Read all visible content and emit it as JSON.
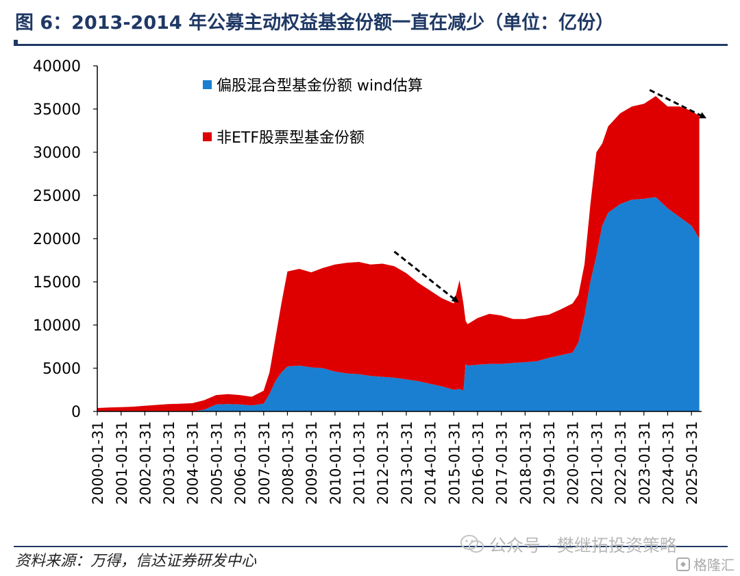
{
  "title": "图 6：2013-2014 年公募主动权益基金份额一直在减少（单位：亿份）",
  "source": "资料来源：万得，信达证券研发中心",
  "watermark": "公众号 · 樊继拓投资策略",
  "corner_badge": "格隆汇",
  "colors": {
    "title": "#1f3864",
    "blue": "#1a7fd0",
    "red": "#de0000",
    "axis": "#000000"
  },
  "chart_data": {
    "type": "area",
    "stacked": true,
    "x": [
      "2000-01-31",
      "2000-07-31",
      "2001-01-31",
      "2001-07-31",
      "2002-01-31",
      "2002-07-31",
      "2003-01-31",
      "2003-07-31",
      "2004-01-31",
      "2004-07-31",
      "2005-01-31",
      "2005-07-31",
      "2006-01-31",
      "2006-07-31",
      "2007-01-31",
      "2007-04-30",
      "2007-07-31",
      "2007-10-31",
      "2008-01-31",
      "2008-07-31",
      "2009-01-31",
      "2009-07-31",
      "2010-01-31",
      "2010-07-31",
      "2011-01-31",
      "2011-07-31",
      "2012-01-31",
      "2012-07-31",
      "2013-01-31",
      "2013-07-31",
      "2014-01-31",
      "2014-07-31",
      "2015-01-31",
      "2015-04-30",
      "2015-06-30",
      "2015-07-31",
      "2015-08-31",
      "2016-01-31",
      "2016-07-31",
      "2017-01-31",
      "2017-07-31",
      "2018-01-31",
      "2018-07-31",
      "2019-01-31",
      "2019-07-31",
      "2020-01-31",
      "2020-04-30",
      "2020-07-31",
      "2020-10-31",
      "2021-01-31",
      "2021-04-30",
      "2021-07-31",
      "2022-01-31",
      "2022-07-31",
      "2023-01-31",
      "2023-07-31",
      "2024-01-31",
      "2024-07-31",
      "2025-01-31",
      "2025-05-31"
    ],
    "series": [
      {
        "name": "偏股混合型基金份额 wind估算",
        "color": "#1a7fd0",
        "values": [
          0,
          0,
          0,
          0,
          0,
          0,
          0,
          0,
          0,
          200,
          800,
          850,
          800,
          700,
          900,
          2000,
          3500,
          4500,
          5200,
          5300,
          5100,
          5000,
          4600,
          4400,
          4300,
          4100,
          4000,
          3900,
          3700,
          3500,
          3200,
          2900,
          2500,
          2600,
          2400,
          5500,
          5300,
          5400,
          5500,
          5500,
          5600,
          5700,
          5800,
          6200,
          6500,
          6800,
          8000,
          11000,
          15000,
          18000,
          21500,
          23000,
          24000,
          24500,
          24600,
          24800,
          23500,
          22500,
          21500,
          20000
        ]
      },
      {
        "name": "非ETF股票型基金份额",
        "color": "#de0000",
        "values": [
          400,
          450,
          500,
          550,
          650,
          750,
          850,
          900,
          950,
          1100,
          1100,
          1150,
          1100,
          1000,
          1500,
          2500,
          5000,
          8000,
          11000,
          11200,
          11000,
          11600,
          12400,
          12800,
          13000,
          12900,
          13100,
          12900,
          12300,
          11400,
          10800,
          10200,
          10000,
          12600,
          10000,
          5000,
          4800,
          5400,
          5800,
          5600,
          5100,
          5000,
          5200,
          5000,
          5300,
          5700,
          5500,
          6000,
          9000,
          12000,
          9500,
          10000,
          10500,
          10800,
          11000,
          11700,
          11800,
          12800,
          13300,
          14200
        ]
      }
    ],
    "ylim": [
      0,
      40000
    ],
    "yticks": [
      0,
      5000,
      10000,
      15000,
      20000,
      25000,
      30000,
      35000,
      40000
    ],
    "xticks": [
      "2000-01-31",
      "2001-01-31",
      "2002-01-31",
      "2003-01-31",
      "2004-01-31",
      "2005-01-31",
      "2006-01-31",
      "2007-01-31",
      "2008-01-31",
      "2009-01-31",
      "2010-01-31",
      "2011-01-31",
      "2012-01-31",
      "2013-01-31",
      "2014-01-31",
      "2015-01-31",
      "2016-01-31",
      "2017-01-31",
      "2018-01-31",
      "2019-01-31",
      "2020-01-31",
      "2021-01-31",
      "2022-01-31",
      "2023-01-31",
      "2024-01-31",
      "2025-01-31"
    ],
    "legend_position": "top-left",
    "grid": false,
    "annotations": [
      {
        "type": "dashed-arrow",
        "from": [
          "2012-07-31",
          18500
        ],
        "to": [
          "2015-03-31",
          12700
        ]
      },
      {
        "type": "dashed-arrow",
        "from": [
          "2023-04-30",
          37200
        ],
        "to": [
          "2025-08-31",
          34000
        ]
      }
    ]
  }
}
